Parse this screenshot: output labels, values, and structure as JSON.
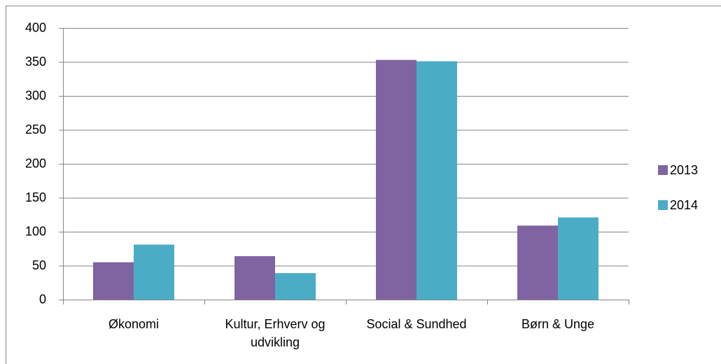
{
  "chart_data": {
    "type": "bar",
    "categories": [
      "Økonomi",
      "Kultur, Erhverv og udvikling",
      "Social & Sundhed",
      "Børn & Unge"
    ],
    "series": [
      {
        "name": "2013",
        "color": "#8064a2",
        "values": [
          55,
          64,
          353,
          109
        ]
      },
      {
        "name": "2014",
        "color": "#4bacc6",
        "values": [
          81,
          39,
          351,
          121
        ]
      }
    ],
    "ylim": [
      0,
      400
    ],
    "yticks": [
      0,
      50,
      100,
      150,
      200,
      250,
      300,
      350,
      400
    ],
    "grid": true,
    "legend": "right"
  }
}
